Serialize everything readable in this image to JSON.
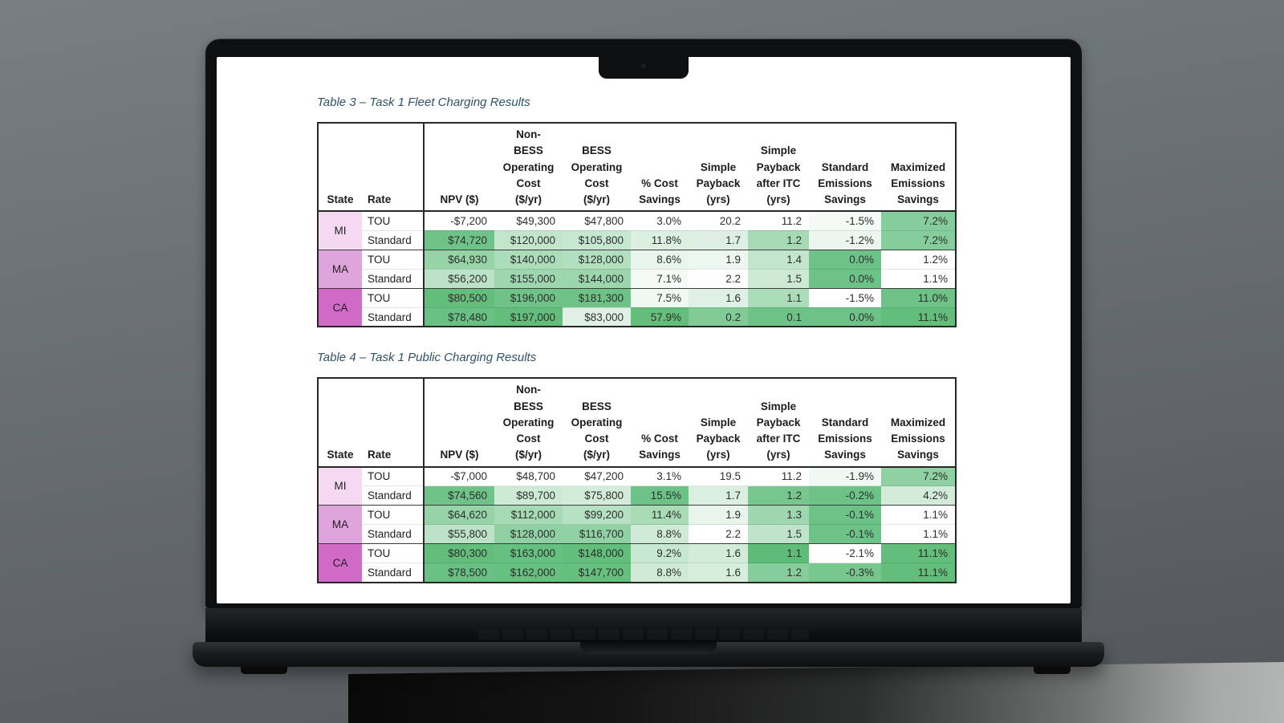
{
  "screen": {
    "state_colors": {
      "MI": "#F4D9F1",
      "MA": "#E0A4DC",
      "CA": "#D169C6"
    },
    "columns": [
      "State",
      "Rate",
      "NPV ($)",
      "Non-\nBESS\nOperating\nCost\n($/yr)",
      "BESS\nOperating\nCost\n($/yr)",
      "% Cost\nSavings",
      "Simple\nPayback\n(yrs)",
      "Simple\nPayback\nafter ITC\n(yrs)",
      "Standard\nEmissions\nSavings",
      "Maximized\nEmissions\nSavings"
    ],
    "tables": [
      {
        "title": "Table 3 – Task 1 Fleet Charging Results",
        "rows": [
          {
            "state": "MI",
            "rate": "TOU",
            "cells": [
              [
                "-$7,200",
                "#FFFFFF"
              ],
              [
                "$49,300",
                "#FFFFFF"
              ],
              [
                "$47,800",
                "#FFFFFF"
              ],
              [
                "3.0%",
                "#FFFFFF"
              ],
              [
                "20.2",
                "#FFFFFF"
              ],
              [
                "11.2",
                "#FFFFFF"
              ],
              [
                "-1.5%",
                "#F4FAF5"
              ],
              [
                "7.2%",
                "#85CD9A"
              ]
            ]
          },
          {
            "rate": "Standard",
            "cells": [
              [
                "$74,720",
                "#6FC389"
              ],
              [
                "$120,000",
                "#C2E5CC"
              ],
              [
                "$105,800",
                "#C6E7D0"
              ],
              [
                "11.8%",
                "#DCF0E2"
              ],
              [
                "1.7",
                "#DDF0E3"
              ],
              [
                "1.2",
                "#A5DAB4"
              ],
              [
                "-1.2%",
                "#ECF6EF"
              ],
              [
                "7.2%",
                "#85CD9A"
              ]
            ]
          },
          {
            "state": "MA",
            "rate": "TOU",
            "cells": [
              [
                "$64,930",
                "#96D4A8"
              ],
              [
                "$140,000",
                "#ACDDBA"
              ],
              [
                "$128,000",
                "#B1DFBF"
              ],
              [
                "8.6%",
                "#E8F5EC"
              ],
              [
                "1.9",
                "#EDF7F0"
              ],
              [
                "1.4",
                "#C2E5CC"
              ],
              [
                "0.0%",
                "#6CC287"
              ],
              [
                "1.2%",
                "#FFFFFF"
              ]
            ]
          },
          {
            "rate": "Standard",
            "cells": [
              [
                "$56,200",
                "#BCE3C7"
              ],
              [
                "$155,000",
                "#9ED7AF"
              ],
              [
                "$144,000",
                "#9BD6AC"
              ],
              [
                "7.1%",
                "#F4FAF6"
              ],
              [
                "2.2",
                "#FDFEFD"
              ],
              [
                "1.5",
                "#CBE9D3"
              ],
              [
                "0.0%",
                "#6CC287"
              ],
              [
                "1.1%",
                "#FFFFFF"
              ]
            ]
          },
          {
            "state": "CA",
            "rate": "TOU",
            "cells": [
              [
                "$80,500",
                "#63BE7B"
              ],
              [
                "$196,000",
                "#6FC389"
              ],
              [
                "$181,300",
                "#6CC287"
              ],
              [
                "7.5%",
                "#F0F8F2"
              ],
              [
                "1.6",
                "#DFF1E4"
              ],
              [
                "1.1",
                "#ACDDBA"
              ],
              [
                "-1.5%",
                "#FFFFFF"
              ],
              [
                "11.0%",
                "#6CC287"
              ]
            ]
          },
          {
            "rate": "Standard",
            "cells": [
              [
                "$78,480",
                "#68C083"
              ],
              [
                "$197,000",
                "#63BE7B"
              ],
              [
                "$83,000",
                "#DFF1E5"
              ],
              [
                "57.9%",
                "#63BE7B"
              ],
              [
                "0.2",
                "#82CB97"
              ],
              [
                "0.1",
                "#6CC287"
              ],
              [
                "0.0%",
                "#6CC287"
              ],
              [
                "11.1%",
                "#63BE7B"
              ]
            ]
          }
        ]
      },
      {
        "title": "Table 4 – Task 1 Public Charging Results",
        "rows": [
          {
            "state": "MI",
            "rate": "TOU",
            "cells": [
              [
                "-$7,000",
                "#FFFFFF"
              ],
              [
                "$48,700",
                "#FFFFFF"
              ],
              [
                "$47,200",
                "#FFFFFF"
              ],
              [
                "3.1%",
                "#FFFFFF"
              ],
              [
                "19.5",
                "#FFFFFF"
              ],
              [
                "11.2",
                "#FFFFFF"
              ],
              [
                "-1.9%",
                "#F0F8F3"
              ],
              [
                "7.2%",
                "#8FD1A2"
              ]
            ]
          },
          {
            "rate": "Standard",
            "cells": [
              [
                "$74,560",
                "#6FC389"
              ],
              [
                "$89,700",
                "#CDEAD5"
              ],
              [
                "$75,800",
                "#D2ECD9"
              ],
              [
                "15.5%",
                "#6CC287"
              ],
              [
                "1.7",
                "#D9EFDF"
              ],
              [
                "1.2",
                "#77C68E"
              ],
              [
                "-0.2%",
                "#6CC287"
              ],
              [
                "4.2%",
                "#D3ECDA"
              ]
            ]
          },
          {
            "state": "MA",
            "rate": "TOU",
            "cells": [
              [
                "$64,620",
                "#96D4A8"
              ],
              [
                "$112,000",
                "#A5DAB4"
              ],
              [
                "$99,200",
                "#B7E1C3"
              ],
              [
                "11.4%",
                "#A8DBB6"
              ],
              [
                "1.9",
                "#E9F5EC"
              ],
              [
                "1.3",
                "#9ED7AF"
              ],
              [
                "-0.1%",
                "#6CC287"
              ],
              [
                "1.1%",
                "#FFFFFF"
              ]
            ]
          },
          {
            "rate": "Standard",
            "cells": [
              [
                "$55,800",
                "#BCE3C7"
              ],
              [
                "$128,000",
                "#8FD1A2"
              ],
              [
                "$116,700",
                "#90D2A3"
              ],
              [
                "8.8%",
                "#CFEBD7"
              ],
              [
                "2.2",
                "#FFFFFF"
              ],
              [
                "1.5",
                "#C0E4CB"
              ],
              [
                "-0.1%",
                "#6CC287"
              ],
              [
                "1.1%",
                "#FFFFFF"
              ]
            ]
          },
          {
            "state": "CA",
            "rate": "TOU",
            "cells": [
              [
                "$80,300",
                "#63BE7B"
              ],
              [
                "$163,000",
                "#66C07F"
              ],
              [
                "$148,000",
                "#63BE7B"
              ],
              [
                "9.2%",
                "#C6E7D0"
              ],
              [
                "1.6",
                "#D2ECD9"
              ],
              [
                "1.1",
                "#5FBC78"
              ],
              [
                "-2.1%",
                "#FFFFFF"
              ],
              [
                "11.1%",
                "#63BE7B"
              ]
            ]
          },
          {
            "rate": "Standard",
            "cells": [
              [
                "$78,500",
                "#68C083"
              ],
              [
                "$162,000",
                "#66C07F"
              ],
              [
                "$147,700",
                "#65BF7D"
              ],
              [
                "8.8%",
                "#CFEBD7"
              ],
              [
                "1.6",
                "#D7EEDD"
              ],
              [
                "1.2",
                "#85CD9A"
              ],
              [
                "-0.3%",
                "#77C68E"
              ],
              [
                "11.1%",
                "#63BE7B"
              ]
            ]
          }
        ]
      }
    ]
  }
}
